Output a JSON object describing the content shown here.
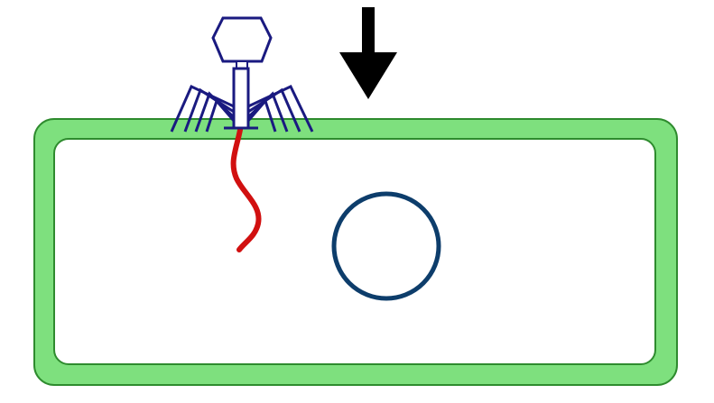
{
  "diagram": {
    "elements": {
      "phage": {
        "icon": "bacteriophage-icon",
        "color": "#1a1a80"
      },
      "dna": {
        "icon": "dna-strand-icon",
        "color": "#d11010"
      },
      "arrow": {
        "icon": "arrow-down-icon",
        "color": "#000000"
      },
      "cell": {
        "icon": "bacterial-cell-icon",
        "wall_color": "#7ee07e",
        "wall_border": "#2e8b2e",
        "interior": "#ffffff"
      },
      "plasmid": {
        "icon": "circle-icon",
        "color": "#0d3d6b"
      }
    }
  }
}
